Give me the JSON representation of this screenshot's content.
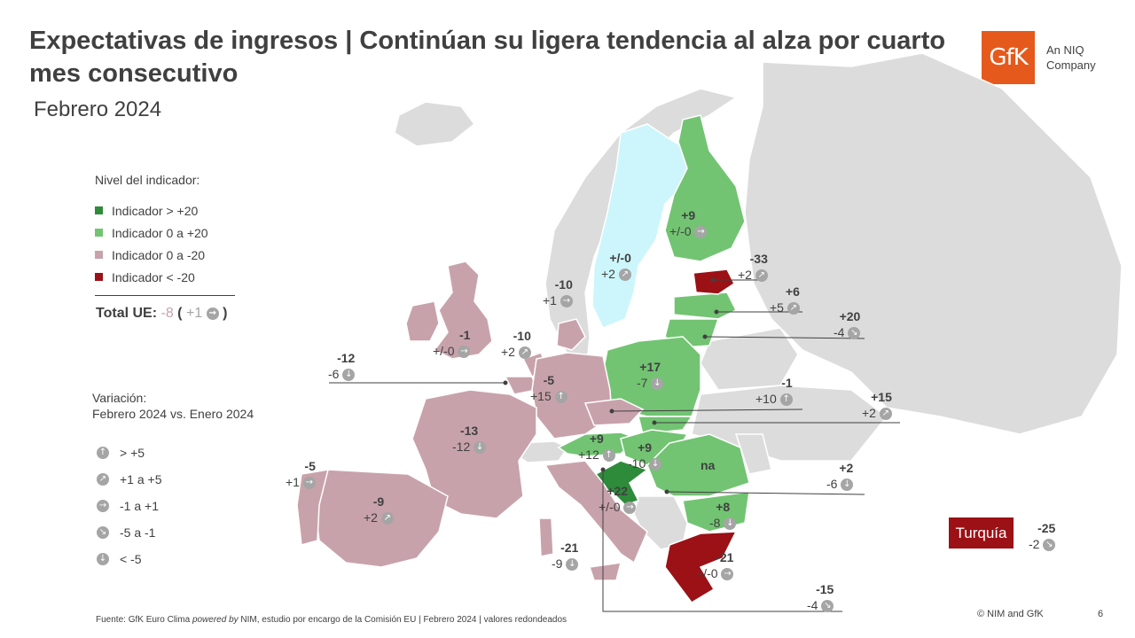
{
  "title": "Expectativas de ingresos | Continúan su ligera tendencia al alza por cuarto mes consecutivo",
  "subtitle": "Febrero 2024",
  "logo": {
    "text": "GfK",
    "tagline": "An NIQ Company"
  },
  "colors": {
    "dark_green": "#2e8b3a",
    "light_green": "#72c472",
    "pink": "#c8a2ab",
    "dark_red": "#9b1116",
    "light_blue": "#ccf6fb",
    "grey": "#dcdcdc",
    "arrow_grey": "#a5a5a5"
  },
  "legend": {
    "header": "Nivel del indicador:",
    "items": [
      {
        "label": "Indicador > +20",
        "color": "#2e8b3a"
      },
      {
        "label": "Indicador 0 a +20",
        "color": "#72c472"
      },
      {
        "label": "Indicador 0 a -20",
        "color": "#c8a2ab"
      },
      {
        "label": "Indicador < -20",
        "color": "#9b1116"
      }
    ]
  },
  "total": {
    "label": "Total UE:",
    "value": "-8",
    "open": "(",
    "change": "+1",
    "close": ")"
  },
  "variation": {
    "header_line1": "Variación:",
    "header_line2": "Febrero 2024 vs. Enero 2024",
    "items": [
      {
        "icon": "arrow-up-icon",
        "label": "> +5"
      },
      {
        "icon": "arrow-up-right-icon",
        "label": "+1 a +5"
      },
      {
        "icon": "arrow-right-icon",
        "label": "-1 a +1"
      },
      {
        "icon": "arrow-down-right-icon",
        "label": "-5 a -1"
      },
      {
        "icon": "arrow-down-icon",
        "label": "< -5"
      }
    ]
  },
  "countries": [
    {
      "name": "finland",
      "value": "+9",
      "change": "+/-0",
      "icon": "arrow-right-icon"
    },
    {
      "name": "sweden",
      "value": "+/-0",
      "change": "+2",
      "icon": "arrow-up-right-icon"
    },
    {
      "name": "denmark",
      "value": "-10",
      "change": "+1",
      "icon": "arrow-right-icon"
    },
    {
      "name": "estonia",
      "value": "-33",
      "change": "+2",
      "icon": "arrow-up-right-icon"
    },
    {
      "name": "latvia",
      "value": "+6",
      "change": "+5",
      "icon": "arrow-up-right-icon"
    },
    {
      "name": "lithuania",
      "value": "+20",
      "change": "-4",
      "icon": "arrow-down-right-icon"
    },
    {
      "name": "ireland",
      "value": "-1",
      "change": "+/-0",
      "icon": "arrow-right-icon"
    },
    {
      "name": "netherlands",
      "value": "-10",
      "change": "+2",
      "icon": "arrow-up-right-icon"
    },
    {
      "name": "belgium",
      "value": "-12",
      "change": "-6",
      "icon": "arrow-down-icon"
    },
    {
      "name": "germany",
      "value": "-5",
      "change": "+15",
      "icon": "arrow-up-icon"
    },
    {
      "name": "poland",
      "value": "+17",
      "change": "-7",
      "icon": "arrow-down-icon"
    },
    {
      "name": "czechia",
      "value": "-1",
      "change": "+10",
      "icon": "arrow-up-icon"
    },
    {
      "name": "slovakia",
      "value": "+15",
      "change": "+2",
      "icon": "arrow-up-right-icon"
    },
    {
      "name": "france",
      "value": "-13",
      "change": "-12",
      "icon": "arrow-down-icon"
    },
    {
      "name": "austria",
      "value": "+9",
      "change": "+12",
      "icon": "arrow-up-icon"
    },
    {
      "name": "hungary",
      "value": "+9",
      "change": "-10",
      "icon": "arrow-down-icon"
    },
    {
      "name": "portugal",
      "value": "-5",
      "change": "+1",
      "icon": "arrow-right-icon"
    },
    {
      "name": "spain",
      "value": "-9",
      "change": "+2",
      "icon": "arrow-up-right-icon"
    },
    {
      "name": "croatia",
      "value": "+22",
      "change": "+/-0",
      "icon": "arrow-right-icon"
    },
    {
      "name": "romania",
      "value": "+2",
      "change": "-6",
      "icon": "arrow-down-icon"
    },
    {
      "name": "bulgaria",
      "value": "+8",
      "change": "-8",
      "icon": "arrow-down-icon"
    },
    {
      "name": "italy",
      "value": "-21",
      "change": "-9",
      "icon": "arrow-down-icon"
    },
    {
      "name": "greece",
      "value": "-21",
      "change": "+/-0",
      "icon": "arrow-right-icon"
    },
    {
      "name": "slovenia",
      "value": "-15",
      "change": "-4",
      "icon": "arrow-down-right-icon"
    },
    {
      "name": "turkey",
      "value": "-25",
      "change": "-2",
      "icon": "arrow-down-right-icon"
    }
  ],
  "na_label": "na",
  "turkey_label": "Turquía",
  "footer": {
    "part1": "Fuente: GfK Euro Clima ",
    "powered": "powered by",
    "part2": " NIM,  estudio por encargo de la Comisión  EU | Febrero 2024 | valores redondeados"
  },
  "copyright": "© NIM and GfK",
  "page_number": "6"
}
